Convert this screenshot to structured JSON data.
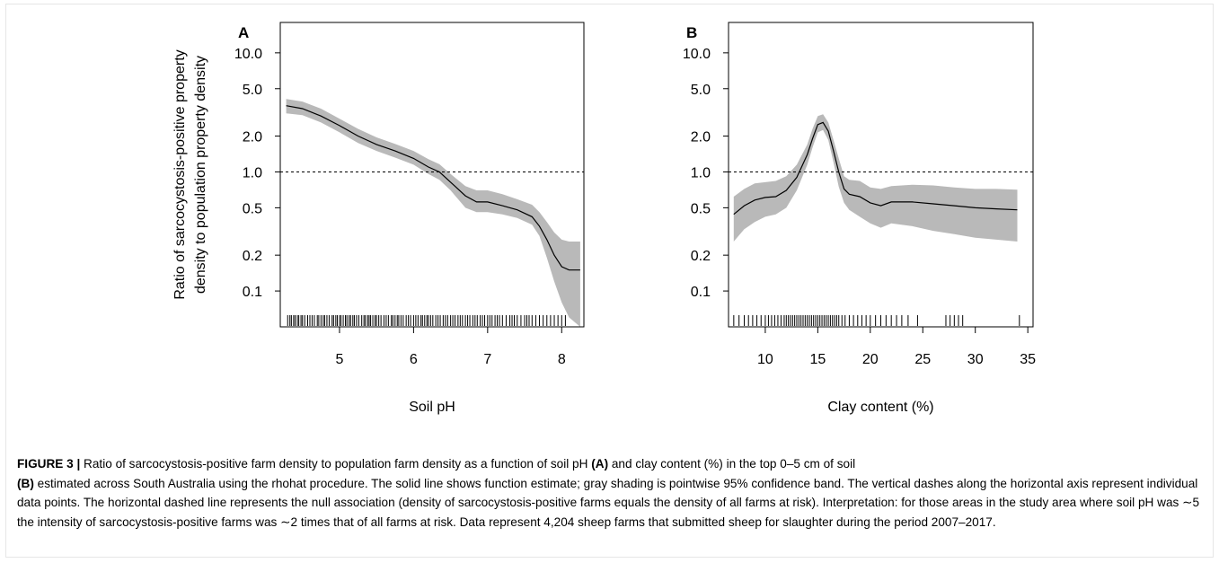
{
  "chart_data": [
    {
      "type": "line",
      "panel_label": "A",
      "xlabel": "Soil pH",
      "ylabel": [
        "Ratio of sarcocystosis-positive property",
        "density to population property density"
      ],
      "y_scale": "log",
      "xlim": [
        4.2,
        8.3
      ],
      "ylim": [
        0.05,
        18
      ],
      "x_ticks": [
        5,
        6,
        7,
        8
      ],
      "x_tick_labels": [
        "5",
        "6",
        "7",
        "8"
      ],
      "y_ticks": [
        0.1,
        0.2,
        0.5,
        1.0,
        2.0,
        5.0,
        10.0
      ],
      "y_tick_labels": [
        "0.1",
        "0.2",
        "0.5",
        "1.0",
        "2.0",
        "5.0",
        "10.0"
      ],
      "reference_line_y": 1.0,
      "grid": false,
      "series": [
        {
          "x": [
            4.28,
            4.5,
            4.75,
            5.0,
            5.25,
            5.5,
            5.75,
            6.0,
            6.2,
            6.35,
            6.5,
            6.7,
            6.85,
            7.0,
            7.2,
            7.4,
            7.6,
            7.7,
            7.8,
            7.9,
            8.0,
            8.1,
            8.25
          ],
          "y": [
            3.6,
            3.4,
            2.95,
            2.45,
            2.0,
            1.7,
            1.5,
            1.3,
            1.1,
            1.0,
            0.82,
            0.63,
            0.56,
            0.56,
            0.52,
            0.48,
            0.42,
            0.35,
            0.27,
            0.2,
            0.16,
            0.15,
            0.15
          ],
          "lower": [
            3.1,
            3.0,
            2.6,
            2.15,
            1.75,
            1.5,
            1.32,
            1.15,
            0.96,
            0.86,
            0.7,
            0.5,
            0.46,
            0.46,
            0.44,
            0.41,
            0.36,
            0.29,
            0.19,
            0.12,
            0.08,
            0.06,
            0.05
          ],
          "upper": [
            4.1,
            3.9,
            3.4,
            2.8,
            2.3,
            1.95,
            1.72,
            1.5,
            1.28,
            1.16,
            0.96,
            0.76,
            0.7,
            0.7,
            0.65,
            0.59,
            0.53,
            0.46,
            0.38,
            0.31,
            0.27,
            0.26,
            0.26
          ]
        }
      ],
      "rug_x": [
        4.3,
        4.33,
        4.35,
        4.38,
        4.4,
        4.43,
        4.45,
        4.48,
        4.5,
        4.53,
        4.57,
        4.6,
        4.63,
        4.66,
        4.7,
        4.72,
        4.75,
        4.78,
        4.8,
        4.83,
        4.86,
        4.9,
        4.92,
        4.95,
        4.97,
        5.0,
        5.02,
        5.05,
        5.08,
        5.1,
        5.13,
        5.15,
        5.18,
        5.2,
        5.23,
        5.26,
        5.3,
        5.33,
        5.35,
        5.38,
        5.4,
        5.42,
        5.45,
        5.48,
        5.5,
        5.53,
        5.56,
        5.6,
        5.63,
        5.66,
        5.7,
        5.72,
        5.75,
        5.78,
        5.8,
        5.83,
        5.86,
        5.9,
        5.93,
        5.96,
        6.0,
        6.03,
        6.06,
        6.1,
        6.12,
        6.15,
        6.18,
        6.2,
        6.23,
        6.26,
        6.3,
        6.33,
        6.36,
        6.4,
        6.43,
        6.46,
        6.5,
        6.53,
        6.56,
        6.6,
        6.63,
        6.66,
        6.7,
        6.73,
        6.76,
        6.8,
        6.83,
        6.86,
        6.9,
        6.93,
        6.96,
        7.0,
        7.03,
        7.06,
        7.1,
        7.13,
        7.16,
        7.2,
        7.25,
        7.3,
        7.33,
        7.36,
        7.4,
        7.45,
        7.5,
        7.53,
        7.56,
        7.6,
        7.65,
        7.7,
        7.75,
        7.8,
        7.85,
        7.9,
        7.95,
        8.0,
        8.05
      ]
    },
    {
      "type": "line",
      "panel_label": "B",
      "xlabel": "Clay content (%)",
      "y_scale": "log",
      "xlim": [
        6.5,
        35.5
      ],
      "ylim": [
        0.05,
        18
      ],
      "x_ticks": [
        10,
        15,
        20,
        25,
        30,
        35
      ],
      "x_tick_labels": [
        "10",
        "15",
        "20",
        "25",
        "30",
        "35"
      ],
      "y_ticks": [
        0.1,
        0.2,
        0.5,
        1.0,
        2.0,
        5.0,
        10.0
      ],
      "y_tick_labels": [
        "0.1",
        "0.2",
        "0.5",
        "1.0",
        "2.0",
        "5.0",
        "10.0"
      ],
      "reference_line_y": 1.0,
      "grid": false,
      "series": [
        {
          "x": [
            7.0,
            8.0,
            9.0,
            10.0,
            11.0,
            12.0,
            13.0,
            14.0,
            14.5,
            15.0,
            15.5,
            16.0,
            16.5,
            17.0,
            17.5,
            18.0,
            19.0,
            20.0,
            21.0,
            22.0,
            24.0,
            26.0,
            28.0,
            30.0,
            32.0,
            34.0
          ],
          "y": [
            0.44,
            0.52,
            0.58,
            0.61,
            0.62,
            0.7,
            0.9,
            1.4,
            1.9,
            2.5,
            2.6,
            2.2,
            1.5,
            1.0,
            0.72,
            0.65,
            0.62,
            0.55,
            0.52,
            0.56,
            0.56,
            0.54,
            0.52,
            0.5,
            0.49,
            0.48
          ],
          "lower": [
            0.26,
            0.33,
            0.38,
            0.42,
            0.44,
            0.5,
            0.7,
            1.15,
            1.6,
            2.15,
            2.25,
            1.85,
            1.2,
            0.75,
            0.55,
            0.48,
            0.42,
            0.37,
            0.34,
            0.37,
            0.35,
            0.32,
            0.3,
            0.28,
            0.27,
            0.26
          ],
          "upper": [
            0.62,
            0.72,
            0.8,
            0.82,
            0.84,
            0.92,
            1.15,
            1.7,
            2.3,
            2.95,
            3.05,
            2.6,
            1.85,
            1.3,
            0.92,
            0.86,
            0.84,
            0.74,
            0.72,
            0.76,
            0.78,
            0.77,
            0.74,
            0.72,
            0.72,
            0.71
          ]
        }
      ],
      "rug_x": [
        7.0,
        7.5,
        8.0,
        8.4,
        8.8,
        9.2,
        9.6,
        10.0,
        10.3,
        10.6,
        10.9,
        11.2,
        11.5,
        11.8,
        12.0,
        12.2,
        12.4,
        12.6,
        12.8,
        13.0,
        13.2,
        13.4,
        13.6,
        13.8,
        14.0,
        14.2,
        14.4,
        14.6,
        14.8,
        15.0,
        15.2,
        15.4,
        15.6,
        15.8,
        16.0,
        16.2,
        16.4,
        16.6,
        16.8,
        17.0,
        17.3,
        17.6,
        18.0,
        18.4,
        18.8,
        19.2,
        19.6,
        20.0,
        20.5,
        21.0,
        21.5,
        22.0,
        22.5,
        23.0,
        23.6,
        24.5,
        27.2,
        27.6,
        28.0,
        28.4,
        28.8,
        34.2
      ]
    }
  ],
  "caption": {
    "figure_label": "FIGURE 3 |",
    "text_1": " Ratio of sarcocystosis-positive farm density to population farm density as a function of soil pH ",
    "ref_a": "(A)",
    "text_2": " and clay content (%) in the top 0–5 cm of soil",
    "ref_b": "(B)",
    "text_3": " estimated across South Australia using the rhohat procedure. The solid line shows function estimate; gray shading is pointwise 95% confidence band. The vertical dashes along the horizontal axis represent individual data points. The horizontal dashed line represents the null association (density of sarcocystosis-positive farms equals the density of all farms at risk). Interpretation: for those areas in the study area where soil pH was ∼5 the intensity of sarcocystosis-positive farms was ∼2 times that of all farms at risk. Data represent 4,204 sheep farms that submitted sheep for slaughter during the period 2007–2017."
  },
  "colors": {
    "band": "#b9b9b9",
    "line": "#000000",
    "axis": "#000000",
    "frame_border": "#e6e6e6"
  }
}
